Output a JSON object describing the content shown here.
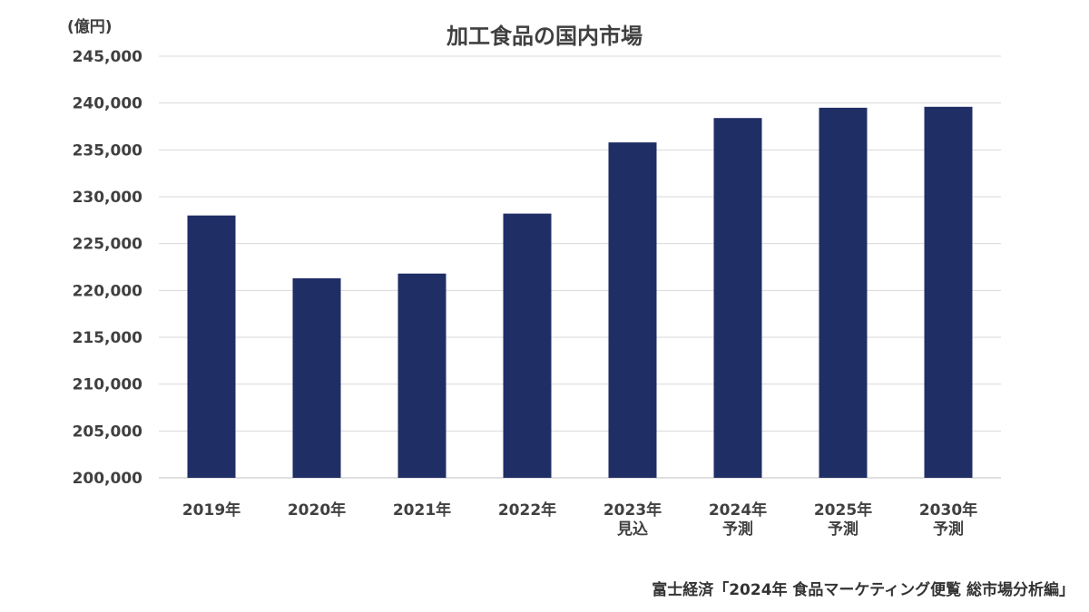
{
  "chart_data": {
    "type": "bar",
    "title": "加工食品の国内市場",
    "unit_label": "(億円)",
    "ylim": [
      200000,
      245000
    ],
    "yticks": [
      200000,
      205000,
      210000,
      215000,
      220000,
      225000,
      230000,
      235000,
      240000,
      245000
    ],
    "ytick_labels": [
      "200,000",
      "205,000",
      "210,000",
      "215,000",
      "220,000",
      "225,000",
      "230,000",
      "235,000",
      "240,000",
      "245,000"
    ],
    "categories": [
      [
        "2019年"
      ],
      [
        "2020年"
      ],
      [
        "2021年"
      ],
      [
        "2022年"
      ],
      [
        "2023年",
        "見込"
      ],
      [
        "2024年",
        "予測"
      ],
      [
        "2025年",
        "予測"
      ],
      [
        "2030年",
        "予測"
      ]
    ],
    "values": [
      228000,
      221300,
      221800,
      228200,
      235800,
      238400,
      239500,
      239600
    ],
    "bar_color": "#202e66",
    "grid": true,
    "legend": "none",
    "source": "富士経済「2024年 食品マーケティング便覧 総市場分析編」"
  }
}
